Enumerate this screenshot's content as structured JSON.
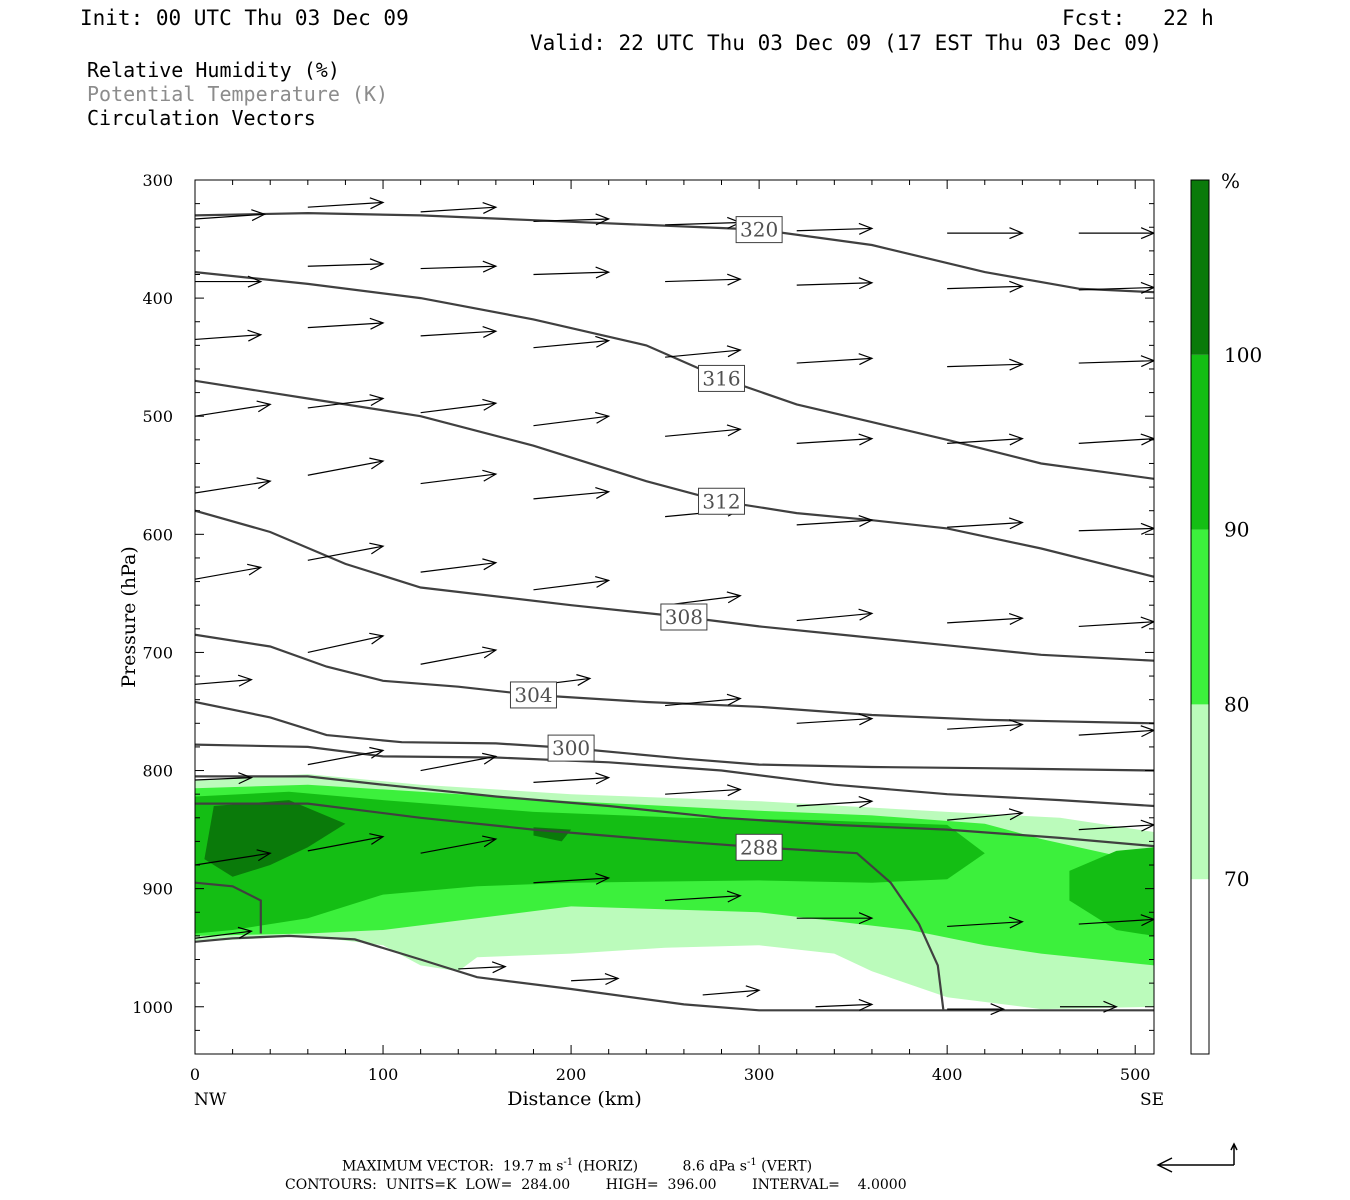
{
  "header": {
    "init": "Init: 00 UTC Thu 03 Dec 09",
    "fcst": "Fcst:   22 h",
    "valid": "Valid: 22 UTC Thu 03 Dec 09 (17 EST Thu 03 Dec 09)"
  },
  "legend": {
    "rh": "Relative Humidity (%)",
    "theta": "Potential Temperature (K)",
    "vectors": "Circulation Vectors",
    "theta_color": "#8c8c8c"
  },
  "footer": {
    "line1_a": "MAXIMUM VECTOR:  19.7 m s",
    "line1_sup1": "-1",
    "line1_b": " (HORIZ)          8.6 dPa s",
    "line1_sup2": "-1",
    "line1_c": " (VERT)",
    "line2": "CONTOURS:  UNITS=K  LOW=  284.00        HIGH=  396.00        INTERVAL=    4.0000"
  },
  "chart_data": {
    "type": "heatmap",
    "title": "",
    "xlabel": "Distance (km)",
    "ylabel": "Pressure (hPa)",
    "xlim": [
      0,
      510
    ],
    "ylim": [
      1040,
      300
    ],
    "x_ticks": [
      0,
      100,
      200,
      300,
      400,
      500
    ],
    "y_ticks": [
      300,
      400,
      500,
      600,
      700,
      800,
      900,
      1000
    ],
    "x_end_labels": {
      "left": "NW",
      "right": "SE"
    },
    "colorbar": {
      "unit": "%",
      "levels": [
        70,
        80,
        90,
        100
      ],
      "colors": [
        "#ffffff",
        "#bbfbbb",
        "#3cf03c",
        "#14be14",
        "#0a7a0a"
      ]
    },
    "rh_regions": [
      {
        "level": 70,
        "points": [
          [
            0,
            808
          ],
          [
            60,
            803
          ],
          [
            120,
            812
          ],
          [
            200,
            820
          ],
          [
            300,
            826
          ],
          [
            400,
            835
          ],
          [
            460,
            840
          ],
          [
            510,
            852
          ],
          [
            510,
            1000
          ],
          [
            450,
            1002
          ],
          [
            400,
            992
          ],
          [
            360,
            970
          ],
          [
            340,
            955
          ],
          [
            300,
            948
          ],
          [
            250,
            950
          ],
          [
            200,
            955
          ],
          [
            150,
            958
          ],
          [
            140,
            970
          ],
          [
            120,
            965
          ],
          [
            100,
            948
          ],
          [
            60,
            940
          ],
          [
            0,
            945
          ]
        ]
      },
      {
        "level": 80,
        "points": [
          [
            0,
            815
          ],
          [
            60,
            812
          ],
          [
            120,
            818
          ],
          [
            200,
            826
          ],
          [
            300,
            834
          ],
          [
            360,
            838
          ],
          [
            420,
            845
          ],
          [
            450,
            858
          ],
          [
            490,
            872
          ],
          [
            510,
            870
          ],
          [
            510,
            965
          ],
          [
            480,
            960
          ],
          [
            450,
            955
          ],
          [
            420,
            948
          ],
          [
            380,
            935
          ],
          [
            300,
            920
          ],
          [
            200,
            915
          ],
          [
            150,
            925
          ],
          [
            100,
            935
          ],
          [
            60,
            938
          ],
          [
            0,
            940
          ]
        ]
      },
      {
        "level": 90,
        "points": [
          [
            0,
            822
          ],
          [
            50,
            818
          ],
          [
            100,
            825
          ],
          [
            180,
            835
          ],
          [
            260,
            840
          ],
          [
            330,
            842
          ],
          [
            400,
            846
          ],
          [
            420,
            870
          ],
          [
            400,
            892
          ],
          [
            360,
            895
          ],
          [
            300,
            893
          ],
          [
            200,
            895
          ],
          [
            150,
            898
          ],
          [
            100,
            905
          ],
          [
            60,
            925
          ],
          [
            20,
            935
          ],
          [
            0,
            938
          ]
        ]
      },
      {
        "level": 90,
        "points": [
          [
            465,
            885
          ],
          [
            490,
            868
          ],
          [
            510,
            865
          ],
          [
            510,
            940
          ],
          [
            490,
            935
          ],
          [
            465,
            910
          ]
        ]
      },
      {
        "level": 100,
        "points": [
          [
            10,
            830
          ],
          [
            50,
            825
          ],
          [
            80,
            845
          ],
          [
            60,
            865
          ],
          [
            40,
            880
          ],
          [
            20,
            890
          ],
          [
            5,
            875
          ]
        ]
      },
      {
        "level": 100,
        "points": [
          [
            180,
            848
          ],
          [
            200,
            850
          ],
          [
            195,
            860
          ],
          [
            180,
            855
          ]
        ]
      }
    ],
    "theta_isolines": [
      {
        "label": "320",
        "points": [
          [
            0,
            330
          ],
          [
            60,
            328
          ],
          [
            120,
            330
          ],
          [
            180,
            334
          ],
          [
            240,
            338
          ],
          [
            300,
            342
          ],
          [
            360,
            355
          ],
          [
            420,
            378
          ],
          [
            470,
            392
          ],
          [
            510,
            395
          ]
        ]
      },
      {
        "label": "316",
        "points": [
          [
            0,
            378
          ],
          [
            60,
            388
          ],
          [
            120,
            400
          ],
          [
            180,
            418
          ],
          [
            240,
            440
          ],
          [
            280,
            468
          ],
          [
            320,
            490
          ],
          [
            360,
            505
          ],
          [
            400,
            520
          ],
          [
            450,
            540
          ],
          [
            510,
            553
          ]
        ]
      },
      {
        "label": "312",
        "points": [
          [
            0,
            470
          ],
          [
            60,
            485
          ],
          [
            120,
            500
          ],
          [
            180,
            525
          ],
          [
            240,
            555
          ],
          [
            280,
            572
          ],
          [
            320,
            582
          ],
          [
            360,
            588
          ],
          [
            400,
            595
          ],
          [
            450,
            612
          ],
          [
            510,
            636
          ]
        ]
      },
      {
        "label": "308",
        "points": [
          [
            0,
            580
          ],
          [
            40,
            598
          ],
          [
            80,
            625
          ],
          [
            120,
            645
          ],
          [
            200,
            660
          ],
          [
            260,
            670
          ],
          [
            300,
            678
          ],
          [
            350,
            686
          ],
          [
            400,
            694
          ],
          [
            450,
            702
          ],
          [
            510,
            707
          ]
        ]
      },
      {
        "label": "304",
        "points": [
          [
            0,
            685
          ],
          [
            40,
            695
          ],
          [
            70,
            712
          ],
          [
            100,
            724
          ],
          [
            140,
            729
          ],
          [
            180,
            736
          ],
          [
            240,
            742
          ],
          [
            300,
            746
          ],
          [
            360,
            753
          ],
          [
            420,
            757
          ],
          [
            510,
            760
          ]
        ]
      },
      {
        "label": "300",
        "points": [
          [
            0,
            742
          ],
          [
            40,
            755
          ],
          [
            70,
            770
          ],
          [
            110,
            776
          ],
          [
            160,
            777
          ],
          [
            200,
            781
          ],
          [
            260,
            790
          ],
          [
            300,
            795
          ],
          [
            360,
            797
          ],
          [
            420,
            798
          ],
          [
            510,
            800
          ]
        ]
      },
      {
        "label": "",
        "points": [
          [
            0,
            778
          ],
          [
            60,
            780
          ],
          [
            100,
            788
          ],
          [
            160,
            789
          ],
          [
            220,
            793
          ],
          [
            280,
            800
          ],
          [
            340,
            812
          ],
          [
            400,
            820
          ],
          [
            460,
            825
          ],
          [
            510,
            830
          ]
        ]
      },
      {
        "label": "",
        "points": [
          [
            0,
            805
          ],
          [
            60,
            805
          ],
          [
            100,
            812
          ],
          [
            160,
            822
          ],
          [
            220,
            830
          ],
          [
            280,
            840
          ],
          [
            340,
            846
          ],
          [
            400,
            850
          ],
          [
            460,
            857
          ],
          [
            510,
            864
          ]
        ]
      },
      {
        "label": "288",
        "points": [
          [
            0,
            828
          ],
          [
            60,
            828
          ],
          [
            120,
            840
          ],
          [
            180,
            850
          ],
          [
            240,
            858
          ],
          [
            300,
            865
          ],
          [
            352,
            870
          ],
          [
            370,
            895
          ],
          [
            385,
            930
          ],
          [
            395,
            965
          ],
          [
            398,
            1003
          ]
        ]
      },
      {
        "label": "",
        "points": [
          [
            0,
            895
          ],
          [
            20,
            898
          ],
          [
            35,
            910
          ],
          [
            35,
            938
          ]
        ]
      },
      {
        "label": "",
        "points": [
          [
            0,
            945
          ],
          [
            20,
            942
          ],
          [
            50,
            940
          ],
          [
            85,
            943
          ],
          [
            120,
            960
          ],
          [
            150,
            975
          ],
          [
            200,
            985
          ],
          [
            260,
            998
          ],
          [
            300,
            1003
          ],
          [
            400,
            1003
          ],
          [
            510,
            1003
          ]
        ]
      }
    ],
    "vectors": [
      [
        0,
        333,
        37,
        -4
      ],
      [
        60,
        323,
        40,
        -4
      ],
      [
        120,
        327,
        40,
        -4
      ],
      [
        180,
        335,
        40,
        -2
      ],
      [
        250,
        338,
        40,
        -2
      ],
      [
        320,
        343,
        40,
        -2
      ],
      [
        400,
        345,
        40,
        0
      ],
      [
        470,
        345,
        40,
        0
      ],
      [
        0,
        386,
        35,
        0
      ],
      [
        60,
        373,
        40,
        -2
      ],
      [
        120,
        375,
        40,
        -2
      ],
      [
        180,
        380,
        40,
        -2
      ],
      [
        250,
        386,
        40,
        -2
      ],
      [
        320,
        389,
        40,
        -2
      ],
      [
        400,
        392,
        40,
        -2
      ],
      [
        470,
        393,
        40,
        -2
      ],
      [
        0,
        435,
        35,
        -4
      ],
      [
        60,
        425,
        40,
        -4
      ],
      [
        120,
        432,
        40,
        -4
      ],
      [
        180,
        442,
        40,
        -6
      ],
      [
        250,
        450,
        40,
        -6
      ],
      [
        320,
        455,
        40,
        -4
      ],
      [
        400,
        458,
        40,
        -2
      ],
      [
        470,
        455,
        40,
        -2
      ],
      [
        0,
        500,
        40,
        -10
      ],
      [
        60,
        493,
        40,
        -8
      ],
      [
        120,
        497,
        40,
        -8
      ],
      [
        180,
        508,
        40,
        -8
      ],
      [
        250,
        517,
        40,
        -6
      ],
      [
        320,
        523,
        40,
        -4
      ],
      [
        400,
        523,
        40,
        -4
      ],
      [
        470,
        523,
        40,
        -4
      ],
      [
        0,
        565,
        40,
        -10
      ],
      [
        60,
        550,
        40,
        -12
      ],
      [
        120,
        557,
        40,
        -8
      ],
      [
        180,
        570,
        40,
        -6
      ],
      [
        250,
        585,
        40,
        -6
      ],
      [
        320,
        592,
        40,
        -4
      ],
      [
        400,
        594,
        40,
        -4
      ],
      [
        470,
        597,
        40,
        -2
      ],
      [
        0,
        638,
        35,
        -10
      ],
      [
        60,
        622,
        40,
        -12
      ],
      [
        120,
        632,
        40,
        -8
      ],
      [
        180,
        647,
        40,
        -8
      ],
      [
        250,
        660,
        40,
        -8
      ],
      [
        320,
        673,
        40,
        -6
      ],
      [
        400,
        675,
        40,
        -4
      ],
      [
        470,
        678,
        40,
        -4
      ],
      [
        0,
        727,
        30,
        -4
      ],
      [
        60,
        700,
        40,
        -14
      ],
      [
        120,
        710,
        40,
        -12
      ],
      [
        170,
        730,
        40,
        -8
      ],
      [
        250,
        745,
        40,
        -6
      ],
      [
        320,
        760,
        40,
        -4
      ],
      [
        400,
        765,
        40,
        -4
      ],
      [
        470,
        770,
        40,
        -4
      ],
      [
        0,
        808,
        30,
        -2
      ],
      [
        60,
        795,
        40,
        -12
      ],
      [
        120,
        800,
        40,
        -12
      ],
      [
        180,
        810,
        40,
        -4
      ],
      [
        250,
        820,
        40,
        -4
      ],
      [
        320,
        830,
        40,
        -4
      ],
      [
        400,
        842,
        40,
        -6
      ],
      [
        470,
        850,
        40,
        -4
      ],
      [
        0,
        880,
        40,
        -10
      ],
      [
        60,
        868,
        40,
        -12
      ],
      [
        120,
        870,
        40,
        -12
      ],
      [
        180,
        895,
        40,
        -4
      ],
      [
        250,
        910,
        40,
        -4
      ],
      [
        320,
        925,
        40,
        0
      ],
      [
        400,
        932,
        40,
        -4
      ],
      [
        470,
        930,
        40,
        -4
      ],
      [
        0,
        942,
        30,
        -6
      ],
      [
        140,
        968,
        25,
        -2
      ],
      [
        200,
        978,
        25,
        -2
      ],
      [
        270,
        990,
        30,
        -4
      ],
      [
        330,
        1000,
        30,
        -2
      ],
      [
        400,
        1002,
        30,
        0
      ],
      [
        460,
        1000,
        30,
        0
      ]
    ]
  }
}
